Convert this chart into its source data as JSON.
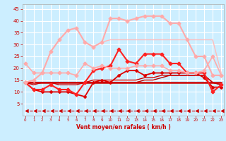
{
  "x": [
    0,
    1,
    2,
    3,
    4,
    5,
    6,
    7,
    8,
    9,
    10,
    11,
    12,
    13,
    14,
    15,
    16,
    17,
    18,
    19,
    20,
    21,
    22,
    23
  ],
  "series": [
    {
      "y": [
        14,
        14,
        14,
        14,
        14,
        14,
        14,
        14,
        14,
        14,
        14,
        14,
        14,
        14,
        14,
        14,
        14,
        14,
        14,
        14,
        14,
        14,
        14,
        14
      ],
      "color": "#cc0000",
      "lw": 1.8,
      "marker": null,
      "linestyle": "-",
      "zorder": 5
    },
    {
      "y": [
        14,
        13,
        14,
        14,
        13,
        13,
        13,
        14,
        15,
        15,
        15,
        15,
        15,
        15,
        16,
        16,
        17,
        17,
        17,
        17,
        17,
        17,
        14,
        13
      ],
      "color": "#cc0000",
      "lw": 1.0,
      "marker": null,
      "linestyle": "-",
      "zorder": 4
    },
    {
      "y": [
        14,
        11,
        10,
        10,
        10,
        10,
        9,
        8,
        14,
        15,
        14,
        17,
        19,
        19,
        17,
        18,
        18,
        18,
        18,
        18,
        18,
        16,
        12,
        12
      ],
      "color": "#dd0000",
      "lw": 1.3,
      "marker": "D",
      "ms": 2.0,
      "linestyle": "-",
      "zorder": 6
    },
    {
      "y": [
        14,
        14,
        14,
        14,
        14,
        14,
        14,
        14,
        14,
        14,
        14,
        14,
        14,
        14,
        15,
        15,
        16,
        17,
        17,
        17,
        17,
        17,
        14,
        13
      ],
      "color": "#bb0000",
      "lw": 1.0,
      "marker": null,
      "linestyle": "-",
      "zorder": 3
    },
    {
      "y": [
        14,
        11,
        11,
        13,
        11,
        11,
        9,
        14,
        19,
        20,
        21,
        28,
        23,
        22,
        26,
        26,
        26,
        22,
        22,
        18,
        18,
        18,
        10,
        13
      ],
      "color": "#ff2222",
      "lw": 1.5,
      "marker": "D",
      "ms": 2.5,
      "linestyle": "-",
      "zorder": 7
    },
    {
      "y": [
        22,
        18,
        18,
        18,
        18,
        18,
        17,
        22,
        20,
        21,
        20,
        20,
        20,
        21,
        21,
        21,
        21,
        19,
        19,
        18,
        18,
        19,
        25,
        17
      ],
      "color": "#ffaaaa",
      "lw": 1.2,
      "marker": "D",
      "ms": 2.5,
      "linestyle": "-",
      "zorder": 8
    },
    {
      "y": [
        14,
        15,
        18,
        27,
        32,
        36,
        37,
        31,
        29,
        31,
        32,
        32,
        32,
        32,
        32,
        32,
        32,
        32,
        32,
        32,
        32,
        32,
        32,
        18
      ],
      "color": "#ffbbbb",
      "lw": 1.0,
      "marker": null,
      "linestyle": "-",
      "zorder": 2
    },
    {
      "y": [
        14,
        15,
        18,
        27,
        32,
        36,
        37,
        31,
        29,
        31,
        41,
        41,
        40,
        41,
        42,
        42,
        42,
        39,
        39,
        32,
        25,
        25,
        17,
        17
      ],
      "color": "#ffaaaa",
      "lw": 1.5,
      "marker": "D",
      "ms": 2.5,
      "linestyle": "-",
      "zorder": 9
    },
    {
      "y": [
        2,
        2,
        2,
        2,
        2,
        2,
        2,
        2,
        2,
        2,
        2,
        2,
        2,
        2,
        2,
        2,
        2,
        2,
        2,
        2,
        2,
        2,
        2,
        2
      ],
      "color": "#cc0000",
      "lw": 0.8,
      "marker": 4,
      "ms": 3.5,
      "linestyle": "--",
      "zorder": 10
    }
  ],
  "xlim": [
    -0.3,
    23.3
  ],
  "ylim": [
    0,
    47
  ],
  "yticks": [
    5,
    10,
    15,
    20,
    25,
    30,
    35,
    40,
    45
  ],
  "xticks": [
    0,
    1,
    2,
    3,
    4,
    5,
    6,
    7,
    8,
    9,
    10,
    11,
    12,
    13,
    14,
    15,
    16,
    17,
    18,
    19,
    20,
    21,
    22,
    23
  ],
  "xlabel": "Vent moyen/en rafales ( km/h )",
  "bg_color": "#cceeff",
  "grid_color": "#ffffff",
  "tick_color": "#cc0000",
  "label_color": "#cc0000"
}
